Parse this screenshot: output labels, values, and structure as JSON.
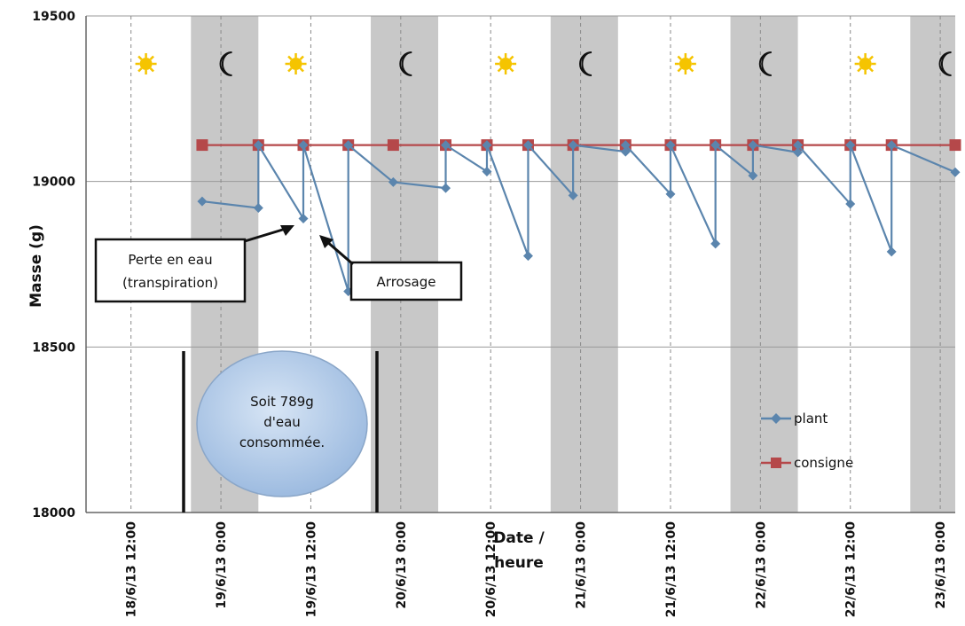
{
  "chart_data": {
    "type": "line",
    "ylabel": "Masse (g)",
    "xlabel_line1": "Date /",
    "xlabel_line2": "heure",
    "ylim": [
      18000,
      19500
    ],
    "y_ticks": [
      18000,
      18500,
      19000,
      19500
    ],
    "y_tick_labels": [
      "18000",
      "18500",
      "19000",
      "19500"
    ],
    "x_tick_labels": [
      "18/6/13 12:00",
      "19/6/13 0:00",
      "19/6/13 12:00",
      "20/6/13 0:00",
      "20/6/13 12:00",
      "21/6/13 0:00",
      "21/6/13 12:00",
      "22/6/13 0:00",
      "22/6/13 12:00",
      "23/6/13 0:00"
    ],
    "x_tick_hours": [
      12,
      24,
      36,
      48,
      60,
      72,
      84,
      96,
      108,
      120
    ],
    "night_bands": [
      [
        20,
        29
      ],
      [
        44,
        53
      ],
      [
        68,
        77
      ],
      [
        92,
        101
      ],
      [
        116,
        122
      ]
    ],
    "sun_hours": [
      14,
      34,
      62,
      86,
      110
    ],
    "moon_hours": [
      25,
      49,
      73,
      97,
      121
    ],
    "colors": {
      "plant": "#5b85ad",
      "consigne": "#b5484a",
      "night": "#c8c8c8",
      "sun": "#f5c400",
      "bubble": "#a9c4e4"
    },
    "series": [
      {
        "name": "plant",
        "marker": "diamond",
        "points": [
          [
            21.5,
            18940
          ],
          [
            29.0,
            18920
          ],
          [
            29.0,
            19110
          ],
          [
            35.0,
            18888
          ],
          [
            35.0,
            19110
          ],
          [
            41.0,
            18668
          ],
          [
            41.0,
            19110
          ],
          [
            47.0,
            18998
          ],
          [
            54.0,
            18980
          ],
          [
            54.0,
            19110
          ],
          [
            59.5,
            19030
          ],
          [
            59.5,
            19110
          ],
          [
            65.0,
            18775
          ],
          [
            65.0,
            19110
          ],
          [
            71.0,
            18958
          ],
          [
            71.0,
            19110
          ],
          [
            78.0,
            19090
          ],
          [
            78.0,
            19110
          ],
          [
            84.0,
            18962
          ],
          [
            84.0,
            19110
          ],
          [
            90.0,
            18812
          ],
          [
            90.0,
            19110
          ],
          [
            95.0,
            19018
          ],
          [
            95.0,
            19110
          ],
          [
            101.0,
            19088
          ],
          [
            101.0,
            19110
          ],
          [
            108.0,
            18932
          ],
          [
            108.0,
            19110
          ],
          [
            113.5,
            18788
          ],
          [
            113.5,
            19110
          ],
          [
            122.0,
            19028
          ]
        ]
      },
      {
        "name": "consigne",
        "marker": "square",
        "points": [
          [
            21.5,
            19110
          ],
          [
            29.0,
            19110
          ],
          [
            35.0,
            19110
          ],
          [
            41.0,
            19110
          ],
          [
            47.0,
            19110
          ],
          [
            54.0,
            19110
          ],
          [
            59.5,
            19110
          ],
          [
            65.0,
            19110
          ],
          [
            71.0,
            19110
          ],
          [
            78.0,
            19110
          ],
          [
            84.0,
            19110
          ],
          [
            90.0,
            19110
          ],
          [
            95.0,
            19110
          ],
          [
            101.0,
            19110
          ],
          [
            108.0,
            19110
          ],
          [
            113.5,
            19110
          ],
          [
            122.0,
            19110
          ]
        ]
      }
    ],
    "annotations": {
      "perte_line1": "Perte en eau",
      "perte_line2": "(transpiration)",
      "arrosage": "Arrosage",
      "bubble_line1": "Soit 789g",
      "bubble_line2": "d'eau",
      "bubble_line3": "consommée."
    },
    "legend": {
      "position": "right",
      "items": [
        "plant",
        "consigne"
      ]
    }
  }
}
